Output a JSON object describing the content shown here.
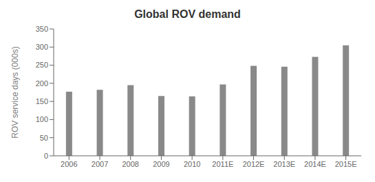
{
  "chart_data": {
    "type": "bar",
    "title": "Global ROV demand",
    "ylabel": "ROV service days (000s)",
    "categories": [
      "2006",
      "2007",
      "2008",
      "2009",
      "2010",
      "2011E",
      "2012E",
      "2013E",
      "2014E",
      "2015E"
    ],
    "values": [
      177,
      182,
      195,
      165,
      164,
      197,
      248,
      246,
      273,
      305
    ],
    "color": "#898989",
    "ylim": [
      0,
      350
    ],
    "yticks": [
      0,
      50,
      100,
      150,
      200,
      250,
      300,
      350
    ],
    "grid": false
  }
}
